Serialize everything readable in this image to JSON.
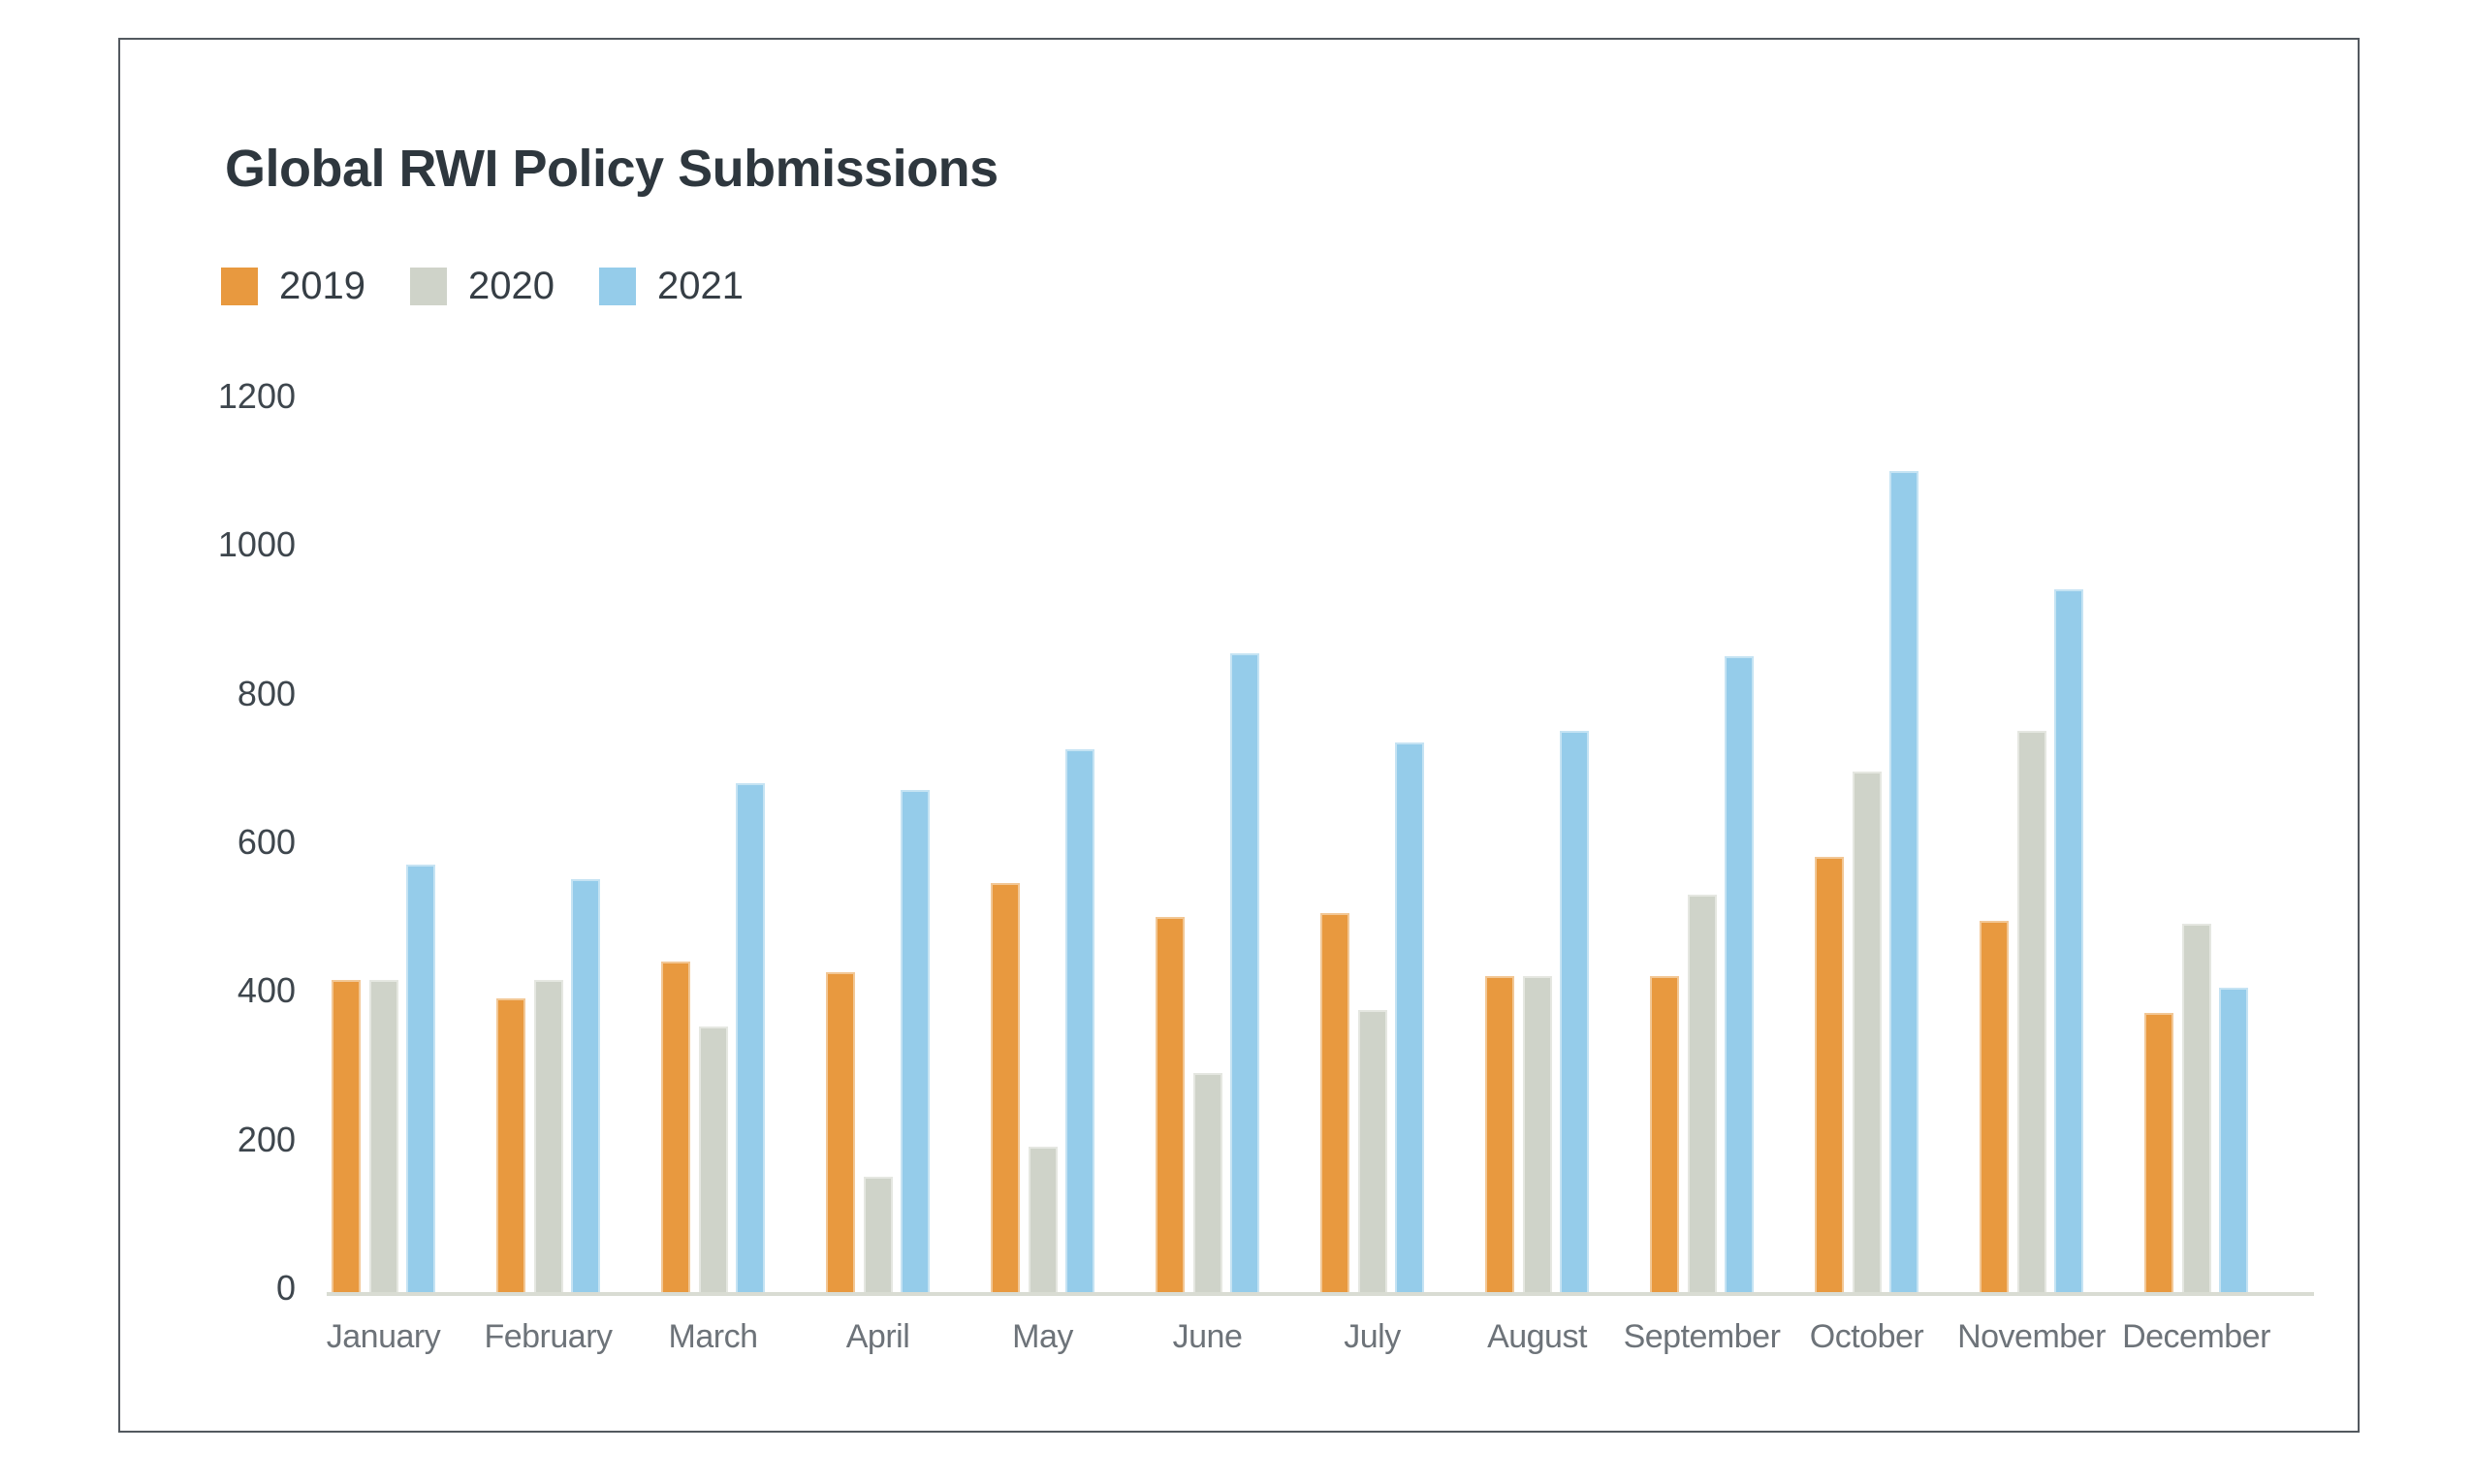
{
  "chart_data": {
    "type": "bar",
    "title": "Global RWI Policy Submissions",
    "categories": [
      "January",
      "February",
      "March",
      "April",
      "May",
      "June",
      "July",
      "August",
      "September",
      "October",
      "November",
      "December"
    ],
    "series": [
      {
        "name": "2019",
        "color": "#E8993F",
        "values": [
          420,
          395,
          445,
          430,
          550,
          505,
          510,
          425,
          425,
          585,
          500,
          375
        ]
      },
      {
        "name": "2020",
        "color": "#CFD3C9",
        "values": [
          420,
          420,
          358,
          155,
          195,
          295,
          380,
          425,
          535,
          700,
          755,
          495
        ]
      },
      {
        "name": "2021",
        "color": "#95CCEA",
        "values": [
          575,
          555,
          685,
          675,
          730,
          860,
          740,
          755,
          855,
          1105,
          945,
          410
        ]
      }
    ],
    "xlabel": "",
    "ylabel": "",
    "ylim": [
      0,
      1200
    ],
    "yticks": [
      0,
      200,
      400,
      600,
      800,
      1000,
      1200
    ],
    "grid": false,
    "legend_position": "top-left",
    "axis_line_color": "#D9DCD3",
    "frame_border_color": "#53595F",
    "title_color": "#2E373E",
    "tick_label_color": "#3E464D",
    "category_label_color": "#6D7379"
  }
}
